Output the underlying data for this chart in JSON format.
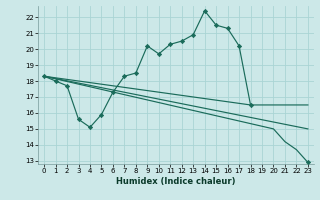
{
  "xlabel": "Humidex (Indice chaleur)",
  "bg_color": "#cce8e8",
  "grid_color": "#aad4d4",
  "line_color": "#1a6b5a",
  "xlim": [
    -0.5,
    23.5
  ],
  "ylim": [
    12.8,
    22.7
  ],
  "yticks": [
    13,
    14,
    15,
    16,
    17,
    18,
    19,
    20,
    21,
    22
  ],
  "xticks": [
    0,
    1,
    2,
    3,
    4,
    5,
    6,
    7,
    8,
    9,
    10,
    11,
    12,
    13,
    14,
    15,
    16,
    17,
    18,
    19,
    20,
    21,
    22,
    23
  ],
  "line1_x": [
    0,
    1,
    2,
    3,
    4,
    5,
    6,
    7,
    8,
    9,
    10,
    11,
    12,
    13,
    14,
    15,
    16,
    17,
    18
  ],
  "line1_y": [
    18.3,
    18.0,
    17.7,
    15.6,
    15.1,
    15.9,
    17.3,
    18.3,
    18.5,
    20.2,
    19.7,
    20.3,
    20.5,
    20.9,
    22.4,
    21.5,
    21.3,
    20.2,
    16.5
  ],
  "line2_x": [
    0,
    18,
    23
  ],
  "line2_y": [
    18.3,
    16.5,
    16.5
  ],
  "line3_x": [
    0,
    23
  ],
  "line3_y": [
    18.3,
    15.0
  ],
  "line4_x": [
    0,
    20,
    21,
    22,
    23
  ],
  "line4_y": [
    18.3,
    15.0,
    14.2,
    13.7,
    12.9
  ]
}
